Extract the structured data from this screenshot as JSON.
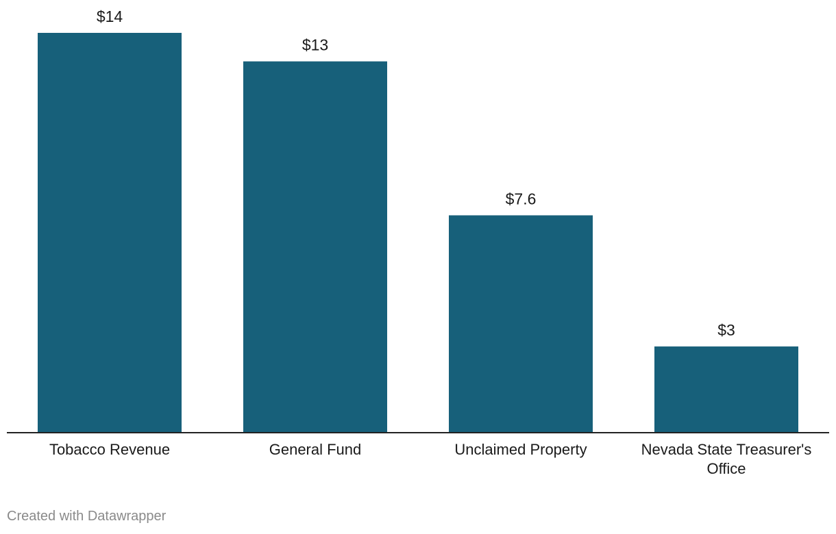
{
  "credit": "Created with Datawrapper",
  "colors": {
    "bar": "#17607A",
    "axis": "#222222",
    "text": "#1a1a1a",
    "credit": "#8a8a8a"
  },
  "chart_data": {
    "type": "bar",
    "title": "",
    "xlabel": "",
    "ylabel": "",
    "categories": [
      "Tobacco Revenue",
      "General Fund",
      "Unclaimed Property",
      "Nevada State Treasurer's Office"
    ],
    "category_lines": [
      [
        "Tobacco Revenue"
      ],
      [
        "General Fund"
      ],
      [
        "Unclaimed Property"
      ],
      [
        "Nevada State Treasurer's",
        "Office"
      ]
    ],
    "values": [
      14,
      13,
      7.6,
      3
    ],
    "value_labels": [
      "$14",
      "$13",
      "$7.6",
      "$3"
    ],
    "ylim": [
      0,
      14
    ],
    "grid": false,
    "legend": "none"
  }
}
